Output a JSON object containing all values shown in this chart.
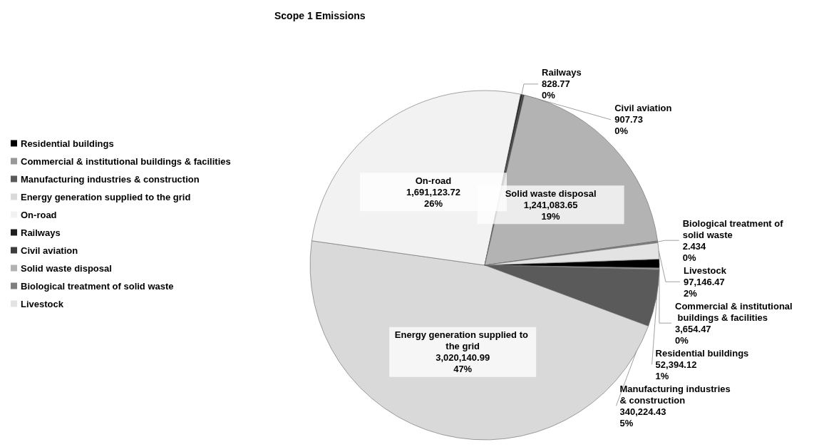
{
  "chart_data": {
    "type": "pie",
    "title": "Scope 1 Emissions",
    "categories": [
      "Residential buildings",
      "Commercial & institutional buildings & facilities",
      "Manufacturing industries & construction",
      "Energy generation supplied to the grid",
      "On-road",
      "Railways",
      "Civil aviation",
      "Solid waste disposal",
      "Biological treatment of solid waste",
      "Livestock"
    ],
    "values": [
      52394.12,
      3654.47,
      340224.43,
      3020140.99,
      1691123.72,
      828.77,
      907.73,
      1241083.65,
      2.434,
      97146.47
    ],
    "value_labels": [
      "52,394.12\n1%",
      "3,654.47\n0%",
      "340,224.43\n5%",
      "3,020,140.99\n47%",
      "1,691,123.72\n26%",
      "828.77\n0%",
      "907.73\n0%",
      "1,241,083.65\n19%",
      "2.434\n0%",
      "97,146.47\n2%"
    ],
    "colors": [
      "#000000",
      "#999999",
      "#5a5a5a",
      "#d9d9d9",
      "#f2f2f2",
      "#1f1f1f",
      "#3d3d3d",
      "#b3b3b3",
      "#7f7f7f",
      "#e3e3e3"
    ],
    "legend": "left"
  }
}
